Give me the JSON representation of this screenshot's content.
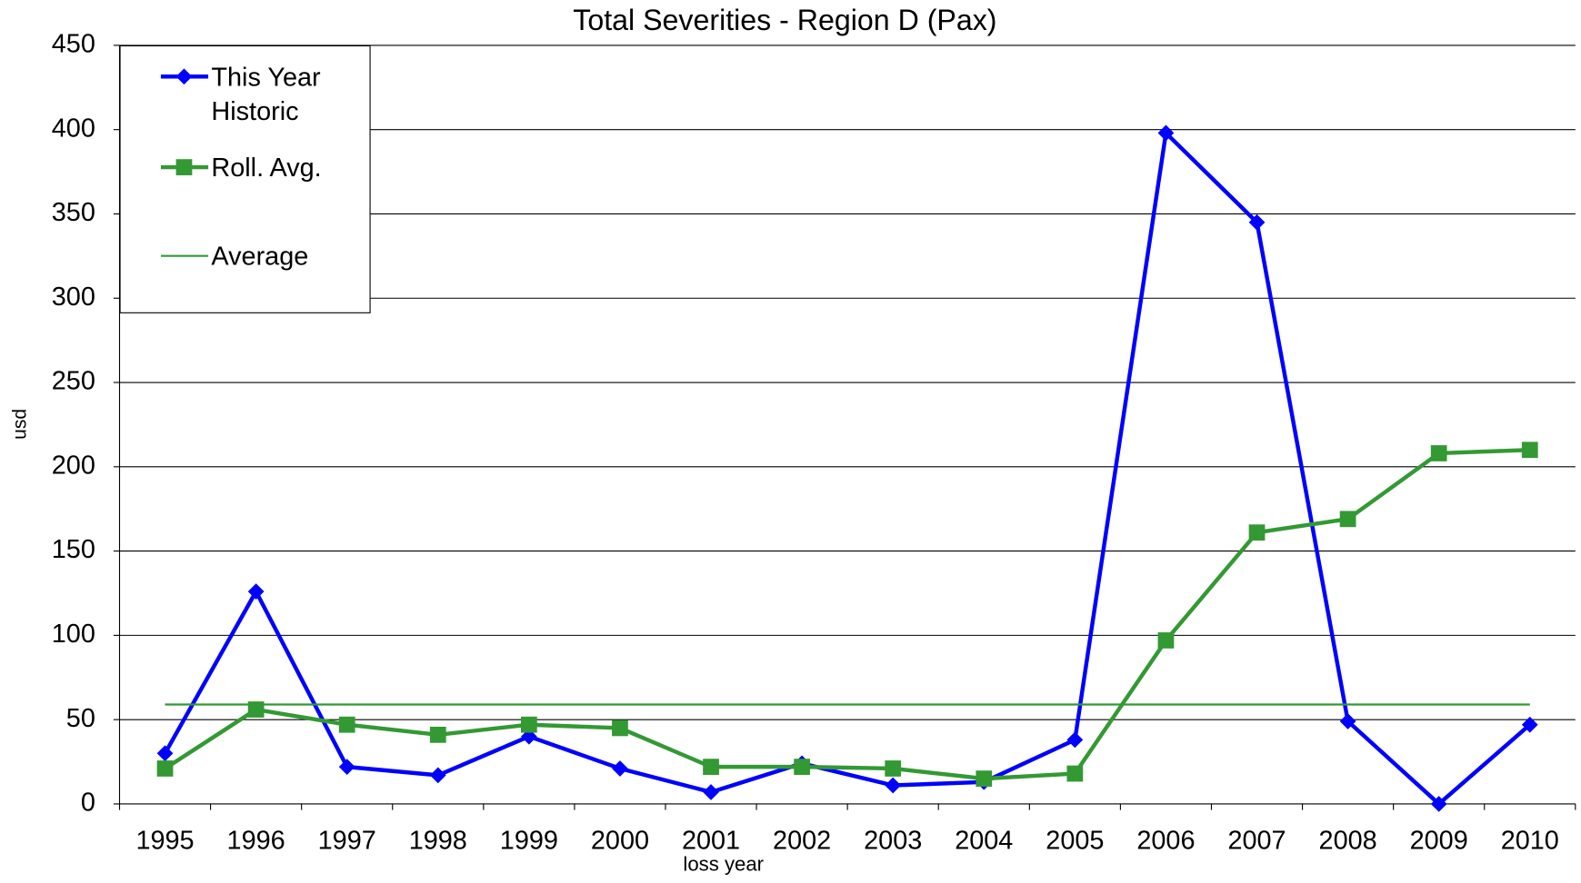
{
  "chart_data": {
    "type": "line",
    "title": "Total Severities - Region D (Pax)",
    "x_label": "loss year",
    "y_label": "usd",
    "categories": [
      "1995",
      "1996",
      "1997",
      "1998",
      "1999",
      "2000",
      "2001",
      "2002",
      "2003",
      "2004",
      "2005",
      "2006",
      "2007",
      "2008",
      "2009",
      "2010"
    ],
    "series": [
      {
        "name": "This Year Historic",
        "color": "#0000ff",
        "marker": "diamond",
        "values": [
          30,
          126,
          22,
          17,
          40,
          21,
          7,
          24,
          11,
          13,
          38,
          398,
          345,
          49,
          0,
          47
        ]
      },
      {
        "name": "Roll. Avg.",
        "color": "#339933",
        "marker": "square",
        "values": [
          21,
          56,
          47,
          41,
          47,
          45,
          22,
          22,
          21,
          15,
          18,
          97,
          161,
          169,
          208,
          210
        ]
      },
      {
        "name": "Average",
        "color": "#339933",
        "marker": "none",
        "value": 59
      }
    ],
    "ylim": [
      0,
      450
    ],
    "yticks": [
      0,
      50,
      100,
      150,
      200,
      250,
      300,
      350,
      400,
      450
    ],
    "grid": true,
    "legend": "top-left"
  }
}
